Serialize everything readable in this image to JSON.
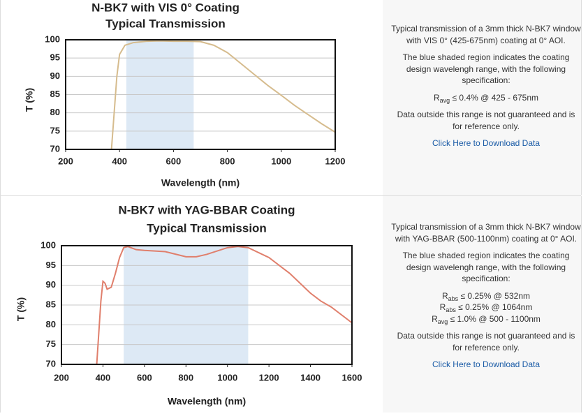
{
  "chart_data": [
    {
      "type": "line",
      "title": "N-BK7 with VIS 0° Coating",
      "subtitle": "Typical Transmission",
      "x_label": "Wavelength (nm)",
      "y_label": "T (%)",
      "color": "#d6bc8e",
      "x": [
        370,
        380,
        390,
        400,
        420,
        450,
        500,
        550,
        600,
        650,
        700,
        750,
        800,
        850,
        900,
        950,
        1000,
        1050,
        1100,
        1150,
        1200
      ],
      "values": [
        70,
        80,
        90,
        96,
        98.5,
        99.2,
        99.6,
        99.7,
        99.6,
        99.6,
        99.5,
        98.5,
        96.5,
        93.5,
        90.5,
        87.5,
        84.8,
        82,
        79.5,
        77,
        74.7
      ],
      "shaded_region": {
        "range": [
          425,
          675
        ],
        "color": "#dde9f5"
      },
      "xlim": [
        200,
        1200
      ],
      "xticks": [
        200,
        400,
        600,
        800,
        1000,
        1200
      ],
      "ylim": [
        70,
        100
      ],
      "yticks": [
        70,
        75,
        80,
        85,
        90,
        95,
        100
      ],
      "grid": true
    },
    {
      "type": "line",
      "title": "N-BK7 with YAG-BBAR Coating",
      "subtitle": "Typical Transmission",
      "x_label": "Wavelength (nm)",
      "y_label": "T (%)",
      "color": "#e07f6c",
      "x": [
        370,
        380,
        390,
        400,
        410,
        420,
        440,
        460,
        480,
        500,
        520,
        560,
        600,
        700,
        800,
        850,
        900,
        1000,
        1050,
        1100,
        1200,
        1300,
        1400,
        1450,
        1500,
        1600
      ],
      "values": [
        70,
        78,
        86,
        91,
        90.5,
        89,
        89.5,
        93,
        97,
        99.5,
        99.8,
        99,
        98.8,
        98.5,
        97.2,
        97.2,
        97.8,
        99.5,
        99.8,
        99.5,
        97,
        93,
        88,
        86,
        84.5,
        80.5
      ],
      "shaded_region": {
        "range": [
          500,
          1100
        ],
        "color": "#dde9f5"
      },
      "xlim": [
        200,
        1600
      ],
      "xticks": [
        200,
        400,
        600,
        800,
        1000,
        1200,
        1400,
        1600
      ],
      "ylim": [
        70,
        100
      ],
      "yticks": [
        70,
        75,
        80,
        85,
        90,
        95,
        100
      ],
      "grid": true
    }
  ],
  "descriptions": [
    {
      "intro": "Typical transmission of a 3mm thick N-BK7 window with VIS 0° (425-675nm) coating at 0° AOI.",
      "shading": "The blue shaded region indicates the coating design wavelengh range, with the following specification:",
      "specs": [
        {
          "symbol": "R",
          "sub": "avg",
          "text": "≤ 0.4% @ 425 - 675nm"
        }
      ],
      "note": "Data outside this range is not guaranteed and is for reference only.",
      "link": "Click Here to Download Data"
    },
    {
      "intro": "Typical transmission of a 3mm thick N-BK7 window with YAG-BBAR (500-1100nm) coating at 0° AOI.",
      "shading": "The blue shaded region indicates the coating design wavelengh range, with the following specification:",
      "specs": [
        {
          "symbol": "R",
          "sub": "abs",
          "text": "≤ 0.25% @ 532nm"
        },
        {
          "symbol": "R",
          "sub": "abs",
          "text": "≤ 0.25% @ 1064nm"
        },
        {
          "symbol": "R",
          "sub": "avg",
          "text": "≤ 1.0% @ 500 - 1100nm"
        }
      ],
      "note": "Data outside this range is not guaranteed and is for reference only.",
      "link": "Click Here to Download Data"
    }
  ]
}
